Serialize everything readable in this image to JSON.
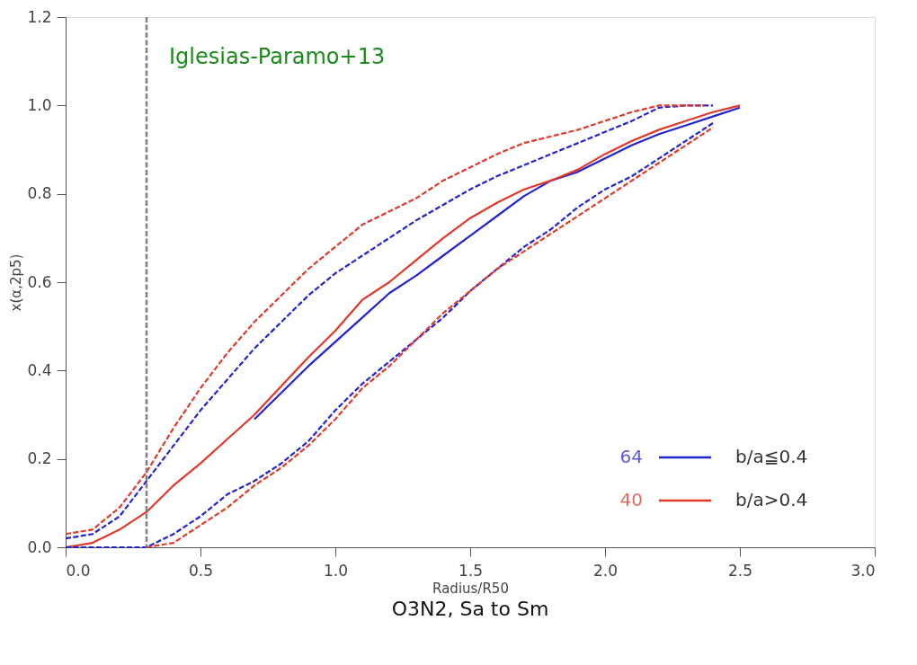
{
  "chart_data": {
    "type": "line",
    "title": "O3N2, Sa to Sm",
    "xlabel": "Radius/R50",
    "ylabel": "x(α,2p5)",
    "xlim": [
      0,
      3.0
    ],
    "ylim": [
      0,
      1.2
    ],
    "xticks": [
      "0.0",
      0.5,
      "1.0",
      1.5,
      "2.0",
      2.5,
      "3.0"
    ],
    "yticks": [
      "0.0",
      0.2,
      0.4,
      0.6,
      0.8,
      "1.0",
      1.2
    ],
    "x": [
      0,
      0.1,
      0.2,
      0.3,
      0.4,
      0.5,
      0.6,
      0.7,
      0.8,
      0.9,
      1.0,
      1.1,
      1.2,
      1.3,
      1.4,
      1.5,
      1.6,
      1.7,
      1.8,
      1.9,
      2.0,
      2.1,
      2.2,
      2.3,
      2.4,
      2.5
    ],
    "series": [
      {
        "name": "b/a≦0.4",
        "color": "#2323d0",
        "line_style": "solid",
        "values": [
          null,
          null,
          null,
          null,
          null,
          null,
          null,
          0.29,
          0.35,
          0.41,
          0.465,
          0.52,
          0.575,
          0.615,
          0.66,
          0.705,
          0.75,
          0.795,
          0.83,
          0.85,
          0.88,
          0.91,
          0.935,
          0.955,
          0.975,
          0.995
        ]
      },
      {
        "name": "b/a>0.4",
        "color": "#e0392a",
        "line_style": "solid",
        "values": [
          0,
          0.01,
          0.04,
          0.08,
          0.14,
          0.19,
          0.245,
          0.3,
          0.365,
          0.43,
          0.49,
          0.56,
          0.6,
          0.65,
          0.7,
          0.745,
          0.78,
          0.81,
          0.83,
          0.855,
          0.89,
          0.92,
          0.945,
          0.965,
          0.985,
          1.0
        ]
      },
      {
        "color": "#2323d0",
        "line_style": "dashed",
        "x": [
          0,
          0.1,
          0.2,
          0.3,
          0.4,
          0.5,
          0.6,
          0.7,
          0.8,
          0.9,
          1.0,
          1.1,
          1.2,
          1.3,
          1.4,
          1.5,
          1.6,
          1.7,
          1.8,
          1.9,
          2.0,
          2.1,
          2.2,
          2.3,
          2.4
        ],
        "values": [
          0.02,
          0.03,
          0.07,
          0.15,
          0.23,
          0.31,
          0.38,
          0.45,
          0.51,
          0.57,
          0.62,
          0.66,
          0.7,
          0.74,
          0.775,
          0.81,
          0.84,
          0.865,
          0.89,
          0.915,
          0.94,
          0.965,
          0.995,
          1.0,
          1.0
        ]
      },
      {
        "color": "#e0392a",
        "line_style": "dashed",
        "x": [
          0,
          0.1,
          0.2,
          0.3,
          0.4,
          0.5,
          0.6,
          0.7,
          0.8,
          0.9,
          1.0,
          1.1,
          1.2,
          1.3,
          1.4,
          1.5,
          1.6,
          1.7,
          1.8,
          1.9,
          2.0,
          2.1,
          2.2,
          2.3,
          2.37
        ],
        "values": [
          0.03,
          0.04,
          0.09,
          0.17,
          0.27,
          0.36,
          0.44,
          0.51,
          0.57,
          0.63,
          0.68,
          0.73,
          0.76,
          0.79,
          0.83,
          0.86,
          0.89,
          0.915,
          0.93,
          0.945,
          0.965,
          0.985,
          1.0,
          1.0,
          1.0
        ]
      },
      {
        "color": "#2323d0",
        "line_style": "dashed",
        "x": [
          0,
          0.1,
          0.2,
          0.3,
          0.4,
          0.5,
          0.6,
          0.7,
          0.8,
          0.9,
          1.0,
          1.1,
          1.2,
          1.3,
          1.4,
          1.5,
          1.6,
          1.7,
          1.8,
          1.9,
          2.0,
          2.1,
          2.2,
          2.3,
          2.4
        ],
        "values": [
          0,
          0,
          0,
          0,
          0.03,
          0.07,
          0.12,
          0.15,
          0.19,
          0.24,
          0.31,
          0.37,
          0.42,
          0.47,
          0.52,
          0.58,
          0.63,
          0.68,
          0.72,
          0.77,
          0.81,
          0.84,
          0.88,
          0.92,
          0.96
        ]
      },
      {
        "color": "#e0392a",
        "line_style": "dashed",
        "x": [
          0.3,
          0.4,
          0.5,
          0.6,
          0.7,
          0.8,
          0.9,
          1.0,
          1.1,
          1.2,
          1.3,
          1.4,
          1.5,
          1.6,
          1.7,
          1.8,
          1.9,
          2.0,
          2.1,
          2.2,
          2.3,
          2.4
        ],
        "values": [
          0,
          0.01,
          0.05,
          0.09,
          0.14,
          0.18,
          0.23,
          0.29,
          0.36,
          0.41,
          0.47,
          0.53,
          0.58,
          0.63,
          0.67,
          0.71,
          0.75,
          0.79,
          0.83,
          0.87,
          0.91,
          0.95
        ]
      }
    ],
    "ref_lines": [
      {
        "axis": "x",
        "value": 0.3,
        "label": "Iglesias-Paramo+13",
        "color": "#808080",
        "line_style": "dashed"
      }
    ],
    "annotations": [
      "64",
      "40"
    ],
    "legend": "bottom right",
    "grid": false,
    "marker": "none"
  }
}
